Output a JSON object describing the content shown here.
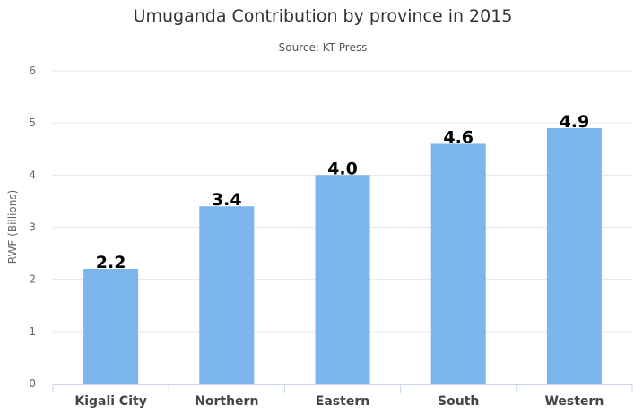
{
  "chart_data": {
    "type": "bar",
    "title": "Umuganda Contribution by province in 2015",
    "subtitle": "Source: KT Press",
    "xlabel": "",
    "ylabel": "RWF (Billions)",
    "categories": [
      "Kigali City",
      "Northern",
      "Eastern",
      "South",
      "Western"
    ],
    "values": [
      2.2,
      3.4,
      4.0,
      4.6,
      4.9
    ],
    "data_labels": [
      "2.2",
      "3.4",
      "4.0",
      "4.6",
      "4.9"
    ],
    "ylim": [
      0,
      6
    ],
    "yticks": [
      "0",
      "1",
      "2",
      "3",
      "4",
      "5",
      "6"
    ],
    "grid": true,
    "bar_color": "#7cb5ec"
  }
}
